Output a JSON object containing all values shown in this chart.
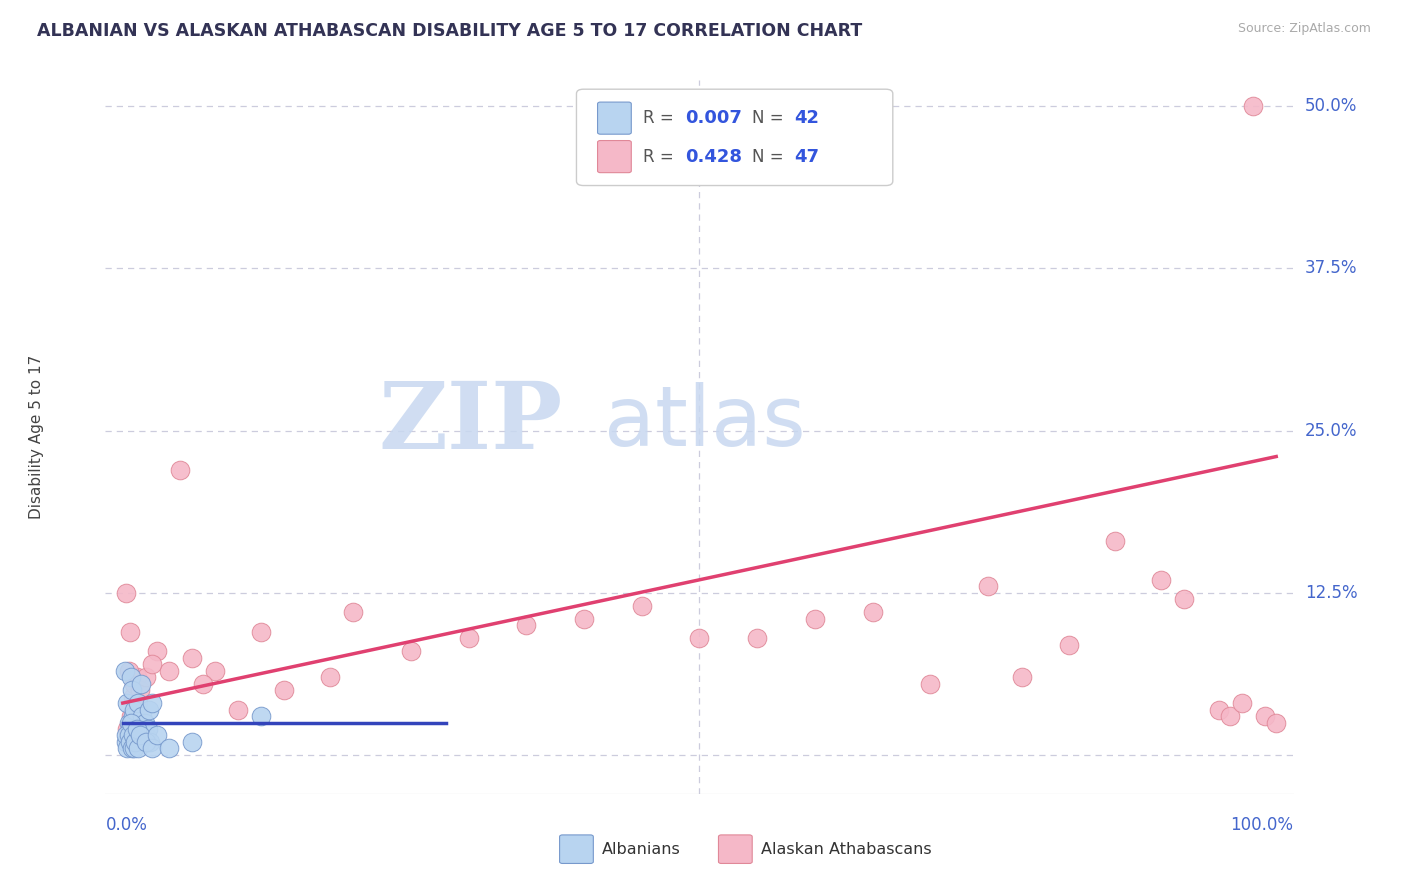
{
  "title": "ALBANIAN VS ALASKAN ATHABASCAN DISABILITY AGE 5 TO 17 CORRELATION CHART",
  "source": "Source: ZipAtlas.com",
  "ylabel": "Disability Age 5 to 17",
  "legend_labels": [
    "Albanians",
    "Alaskan Athabascans"
  ],
  "blue_R": "0.007",
  "blue_N": "42",
  "pink_R": "0.428",
  "pink_N": "47",
  "right_yticks": [
    0.0,
    0.125,
    0.25,
    0.375,
    0.5
  ],
  "right_yticklabels": [
    "",
    "12.5%",
    "25.0%",
    "37.5%",
    "50.0%"
  ],
  "blue_dot_color": "#b8d4f0",
  "pink_dot_color": "#f5b8c8",
  "blue_edge_color": "#7799cc",
  "pink_edge_color": "#e08898",
  "blue_line_color": "#3344bb",
  "pink_line_color": "#e04070",
  "title_color": "#333355",
  "source_color": "#aaaaaa",
  "axis_label_color": "#4466cc",
  "ylabel_color": "#444444",
  "grid_color": "#ccccdd",
  "legend_border_color": "#cccccc",
  "legend_text_color": "#555555",
  "legend_value_color": "#3355dd",
  "watermark_zip_color": "#c8d8f0",
  "watermark_atlas_color": "#c8d8f0",
  "blue_scatter_x": [
    0.002,
    0.003,
    0.004,
    0.005,
    0.006,
    0.007,
    0.008,
    0.009,
    0.01,
    0.011,
    0.012,
    0.013,
    0.014,
    0.015,
    0.016,
    0.017,
    0.018,
    0.019,
    0.02,
    0.021,
    0.022,
    0.023,
    0.024,
    0.025,
    0.003,
    0.004,
    0.005,
    0.006,
    0.007,
    0.008,
    0.009,
    0.01,
    0.011,
    0.012,
    0.013,
    0.015,
    0.02,
    0.025,
    0.03,
    0.04,
    0.06,
    0.12
  ],
  "blue_scatter_y": [
    0.065,
    0.01,
    0.04,
    0.025,
    0.02,
    0.06,
    0.05,
    0.03,
    0.035,
    0.02,
    0.01,
    0.04,
    0.02,
    0.01,
    0.055,
    0.03,
    0.02,
    0.025,
    0.015,
    0.01,
    0.02,
    0.035,
    0.01,
    0.04,
    0.015,
    0.005,
    0.015,
    0.01,
    0.025,
    0.005,
    0.015,
    0.005,
    0.01,
    0.02,
    0.005,
    0.015,
    0.01,
    0.005,
    0.015,
    0.005,
    0.01,
    0.03
  ],
  "pink_scatter_x": [
    0.004,
    0.006,
    0.007,
    0.008,
    0.009,
    0.01,
    0.011,
    0.012,
    0.013,
    0.015,
    0.02,
    0.03,
    0.04,
    0.05,
    0.06,
    0.08,
    0.1,
    0.12,
    0.14,
    0.18,
    0.2,
    0.25,
    0.3,
    0.35,
    0.4,
    0.45,
    0.5,
    0.55,
    0.6,
    0.65,
    0.7,
    0.75,
    0.78,
    0.82,
    0.86,
    0.9,
    0.92,
    0.95,
    0.96,
    0.97,
    0.98,
    0.99,
    1.0,
    0.003,
    0.005,
    0.025,
    0.07
  ],
  "pink_scatter_y": [
    0.02,
    0.095,
    0.03,
    0.025,
    0.045,
    0.055,
    0.025,
    0.06,
    0.035,
    0.05,
    0.06,
    0.08,
    0.065,
    0.22,
    0.075,
    0.065,
    0.035,
    0.095,
    0.05,
    0.06,
    0.11,
    0.08,
    0.09,
    0.1,
    0.105,
    0.115,
    0.09,
    0.09,
    0.105,
    0.11,
    0.055,
    0.13,
    0.06,
    0.085,
    0.165,
    0.135,
    0.12,
    0.035,
    0.03,
    0.04,
    0.5,
    0.03,
    0.025,
    0.125,
    0.065,
    0.07,
    0.055
  ],
  "blue_trend_x": [
    0.0,
    0.28
  ],
  "blue_trend_y": [
    0.025,
    0.025
  ],
  "pink_trend_x": [
    0.0,
    1.0
  ],
  "pink_trend_y": [
    0.04,
    0.23
  ],
  "xmin": 0.0,
  "xmax": 1.0,
  "ymin": -0.03,
  "ymax": 0.52
}
